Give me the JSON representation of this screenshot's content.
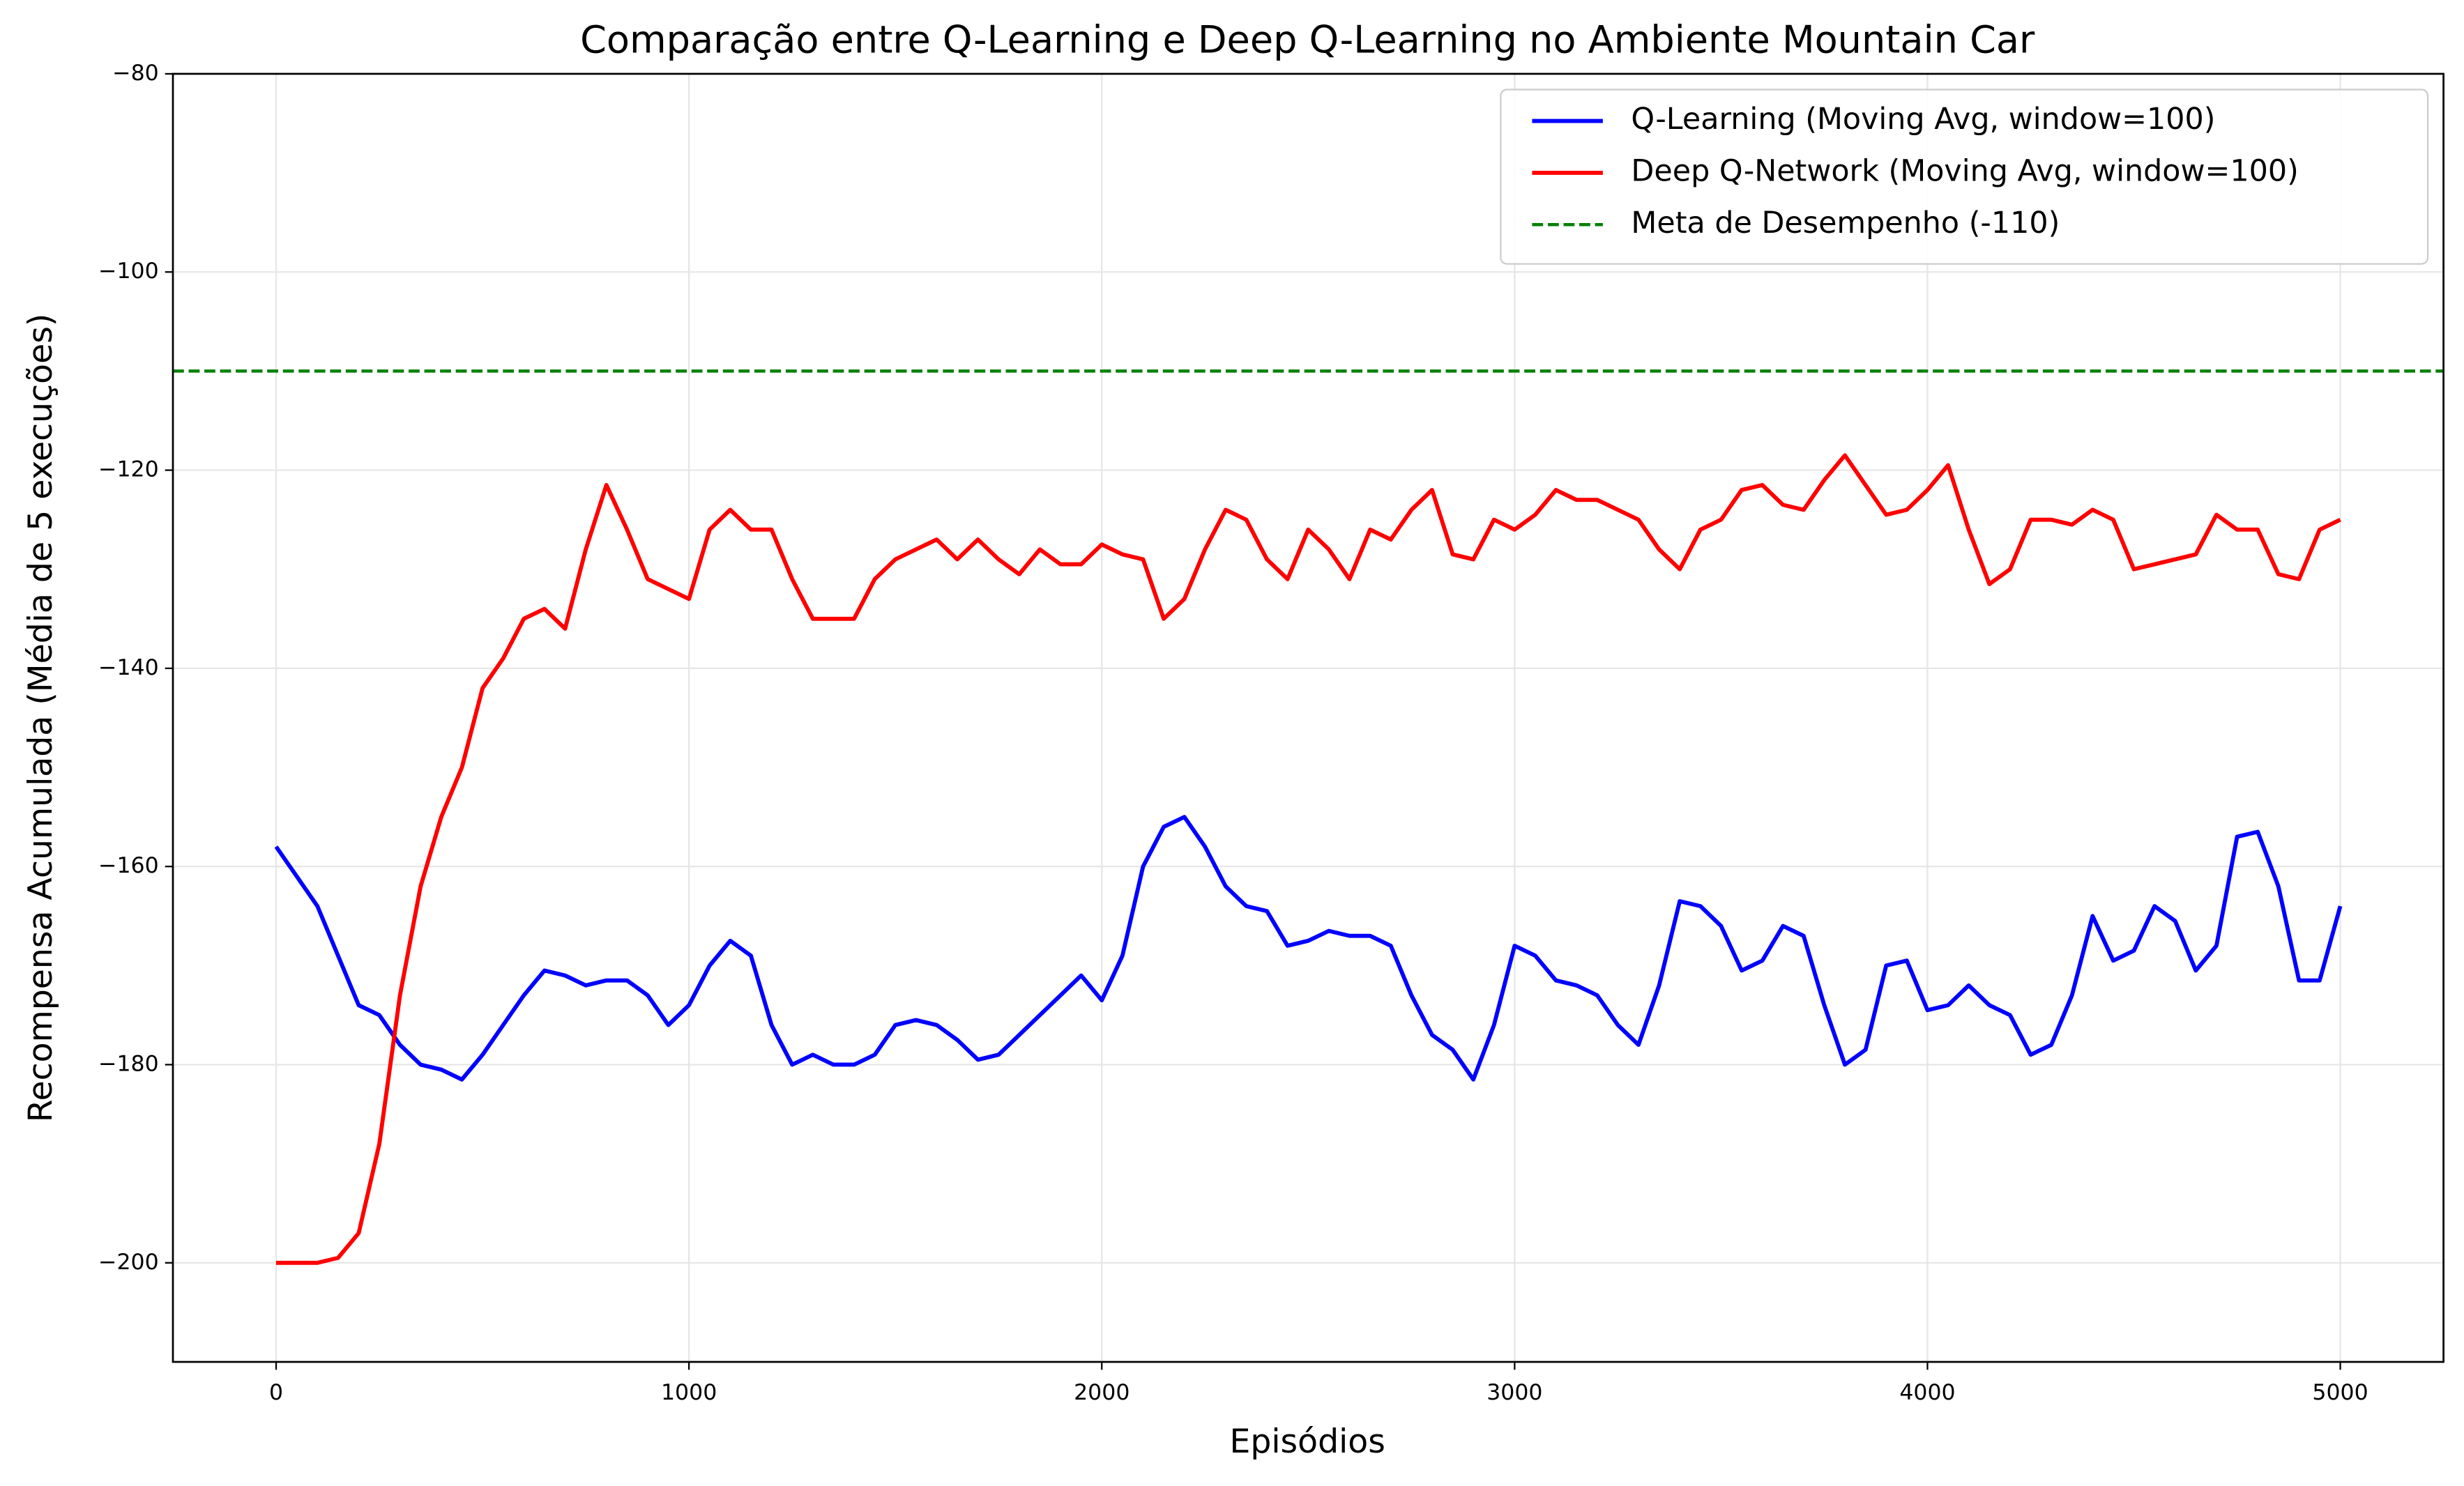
{
  "chart_data": {
    "type": "line",
    "title": "Comparação entre Q-Learning e Deep Q-Learning no Ambiente Mountain Car",
    "xlabel": "Episódios",
    "ylabel": "Recompensa Acumulada (Média de 5 execuções)",
    "xlim": [
      -250,
      5250
    ],
    "ylim": [
      -210,
      -80
    ],
    "xticks": [
      0,
      1000,
      2000,
      3000,
      4000,
      5000
    ],
    "yticks": [
      {
        "value": -80,
        "label": "−80"
      },
      {
        "value": -100,
        "label": "−100"
      },
      {
        "value": -120,
        "label": "−120"
      },
      {
        "value": -140,
        "label": "−140"
      },
      {
        "value": -160,
        "label": "−160"
      },
      {
        "value": -180,
        "label": "−180"
      },
      {
        "value": -200,
        "label": "−200"
      }
    ],
    "grid": true,
    "legend": "upper right",
    "x": [
      0,
      50,
      100,
      150,
      200,
      250,
      300,
      350,
      400,
      450,
      500,
      550,
      600,
      650,
      700,
      750,
      800,
      850,
      900,
      950,
      1000,
      1050,
      1100,
      1150,
      1200,
      1250,
      1300,
      1350,
      1400,
      1450,
      1500,
      1550,
      1600,
      1650,
      1700,
      1750,
      1800,
      1850,
      1900,
      1950,
      2000,
      2050,
      2100,
      2150,
      2200,
      2250,
      2300,
      2350,
      2400,
      2450,
      2500,
      2550,
      2600,
      2650,
      2700,
      2750,
      2800,
      2850,
      2900,
      2950,
      3000,
      3050,
      3100,
      3150,
      3200,
      3250,
      3300,
      3350,
      3400,
      3450,
      3500,
      3550,
      3600,
      3650,
      3700,
      3750,
      3800,
      3850,
      3900,
      3950,
      4000,
      4050,
      4100,
      4150,
      4200,
      4250,
      4300,
      4350,
      4400,
      4450,
      4500,
      4550,
      4600,
      4650,
      4700,
      4750,
      4800,
      4850,
      4900,
      4950,
      5000
    ],
    "series": [
      {
        "name": "Q-Learning (Moving Avg, window=100)",
        "color": "#0000ff",
        "values": [
          -158,
          -161,
          -164,
          -169,
          -174,
          -175,
          -178,
          -180,
          -180.5,
          -181.5,
          -179,
          -176,
          -173,
          -170.5,
          -171,
          -172,
          -171.5,
          -171.5,
          -173,
          -176,
          -174,
          -170,
          -167.5,
          -169,
          -176,
          -180,
          -179,
          -180,
          -180,
          -179,
          -176,
          -175.5,
          -176,
          -177.5,
          -179.5,
          -179,
          -177,
          -175,
          -173,
          -171,
          -173.5,
          -169,
          -160,
          -156,
          -155,
          -158,
          -162,
          -164,
          -164.5,
          -168,
          -167.5,
          -166.5,
          -167,
          -167,
          -168,
          -173,
          -177,
          -178.5,
          -181.5,
          -176,
          -168,
          -169,
          -171.5,
          -172,
          -173,
          -176,
          -178,
          -172,
          -163.5,
          -164,
          -166,
          -170.5,
          -169.5,
          -166,
          -167,
          -174,
          -180,
          -178.5,
          -170,
          -169.5,
          -174.5,
          -174,
          -172,
          -174,
          -175,
          -179,
          -178,
          -173,
          -165,
          -169.5,
          -168.5,
          -164,
          -165.5,
          -170.5,
          -168,
          -157,
          -156.5,
          -162,
          -171.5,
          -171.5,
          -164
        ]
      },
      {
        "name": "Deep Q-Network (Moving Avg, window=100)",
        "color": "#ff0000",
        "values": [
          -200,
          -200,
          -200,
          -199.5,
          -197,
          -188,
          -173,
          -162,
          -155,
          -150,
          -142,
          -139,
          -135,
          -134,
          -136,
          -128,
          -121.5,
          -126,
          -131,
          -132,
          -133,
          -126,
          -124,
          -126,
          -126,
          -131,
          -135,
          -135,
          -135,
          -131,
          -129,
          -128,
          -127,
          -129,
          -127,
          -129,
          -130.5,
          -128,
          -129.5,
          -129.5,
          -127.5,
          -128.5,
          -129,
          -135,
          -133,
          -128,
          -124,
          -125,
          -129,
          -131,
          -126,
          -128,
          -131,
          -126,
          -127,
          -124,
          -122,
          -128.5,
          -129,
          -125,
          -126,
          -124.5,
          -122,
          -123,
          -123,
          -124,
          -125,
          -128,
          -130,
          -126,
          -125,
          -122,
          -121.5,
          -123.5,
          -124,
          -121,
          -118.5,
          -121.5,
          -124.5,
          -124,
          -122,
          -119.5,
          -126,
          -131.5,
          -130,
          -125,
          -125,
          -125.5,
          -124,
          -125,
          -130,
          -129.5,
          -129,
          -128.5,
          -124.5,
          -126,
          -126,
          -130.5,
          -131,
          -126,
          -125
        ]
      }
    ],
    "hlines": [
      {
        "name": "Meta de Desempenho (-110)",
        "y": -110,
        "color": "#008000",
        "style": "dashed"
      }
    ]
  }
}
